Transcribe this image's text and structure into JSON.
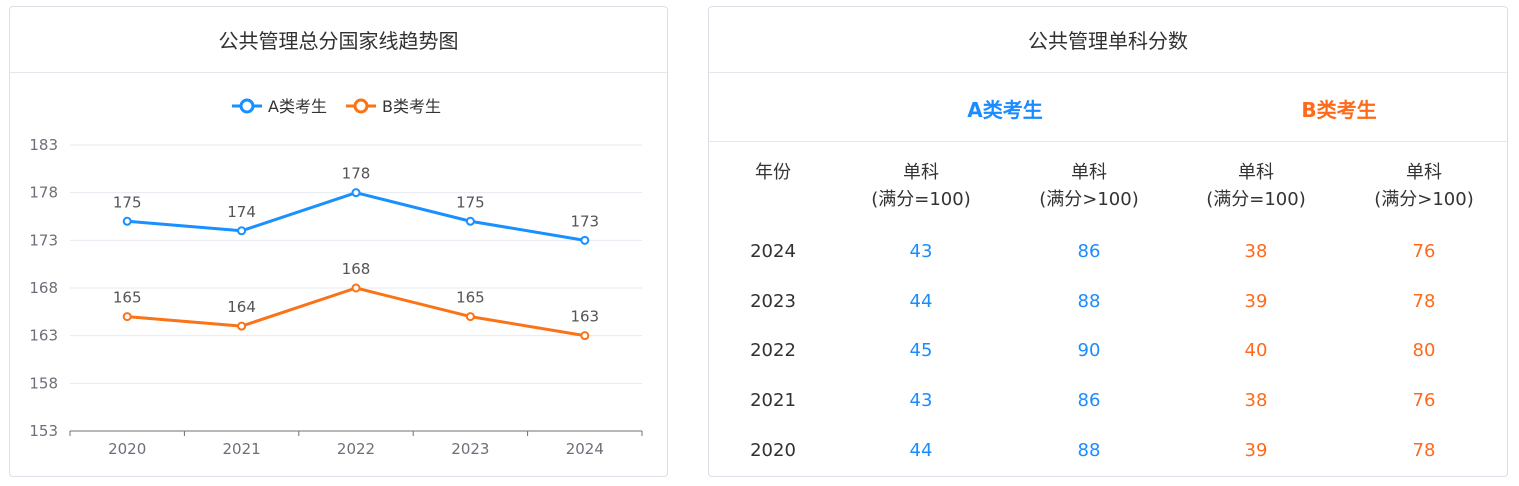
{
  "left_card": {
    "title": "公共管理总分国家线趋势图"
  },
  "right_card": {
    "title": "公共管理单科分数",
    "group_a": "A类考生",
    "group_b": "B类考生",
    "col_year": "年份",
    "col_single_line1": "单科",
    "col_eq100": "(满分=100)",
    "col_gt100": "(满分>100)",
    "colors": {
      "a": "#1a8cff",
      "b": "#ff6a1a"
    },
    "rows": [
      {
        "year": "2024",
        "a_eq": "43",
        "a_gt": "86",
        "b_eq": "38",
        "b_gt": "76"
      },
      {
        "year": "2023",
        "a_eq": "44",
        "a_gt": "88",
        "b_eq": "39",
        "b_gt": "78"
      },
      {
        "year": "2022",
        "a_eq": "45",
        "a_gt": "90",
        "b_eq": "40",
        "b_gt": "80"
      },
      {
        "year": "2021",
        "a_eq": "43",
        "a_gt": "86",
        "b_eq": "38",
        "b_gt": "76"
      },
      {
        "year": "2020",
        "a_eq": "44",
        "a_gt": "88",
        "b_eq": "39",
        "b_gt": "78"
      }
    ]
  },
  "chart_data": {
    "type": "line",
    "title": "公共管理总分国家线趋势图",
    "categories": [
      "2020",
      "2021",
      "2022",
      "2023",
      "2024"
    ],
    "series": [
      {
        "name": "A类考生",
        "values": [
          175,
          174,
          178,
          175,
          173
        ],
        "color": "#1890ff"
      },
      {
        "name": "B类考生",
        "values": [
          165,
          164,
          168,
          165,
          163
        ],
        "color": "#fa7316"
      }
    ],
    "yticks": [
      153,
      158,
      163,
      168,
      173,
      178,
      183
    ],
    "ylim": [
      153,
      183
    ],
    "grid": true,
    "legend": "top-center",
    "xlabel": "",
    "ylabel": ""
  }
}
